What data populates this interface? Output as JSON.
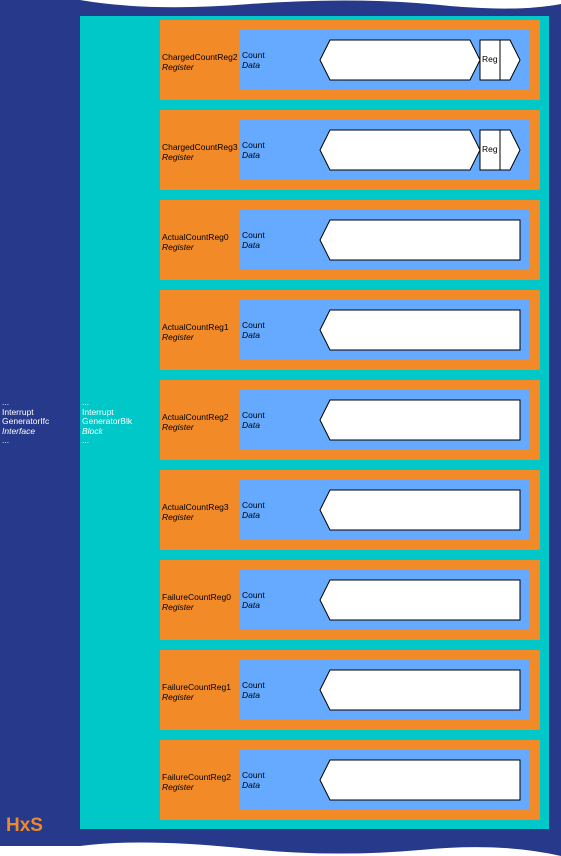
{
  "interface": {
    "dots_top": "...",
    "name": "Interrupt GeneratorIfc",
    "name_line1": "Interrupt",
    "name_line2": "GeneratorIfc",
    "type": "Interface",
    "dots_bottom": "..."
  },
  "block": {
    "dots_top": "...",
    "name_line1": "Interrupt",
    "name_line2": "GeneratorBlk",
    "type": "Block",
    "dots_bottom": "..."
  },
  "logo": "HxS",
  "colors": {
    "interface": "#26398a",
    "block": "#00c8c8",
    "register": "#f28a28",
    "data": "#66aaff",
    "field": "#ffffff"
  },
  "registers": [
    {
      "name": "ChargedCountReg2",
      "type": "Register",
      "field": "Count",
      "field_type": "Data",
      "tag": "Reg"
    },
    {
      "name": "ChargedCountReg3",
      "type": "Register",
      "field": "Count",
      "field_type": "Data",
      "tag": "Reg"
    },
    {
      "name": "ActualCountReg0",
      "type": "Register",
      "field": "Count",
      "field_type": "Data",
      "tag": ""
    },
    {
      "name": "ActualCountReg1",
      "type": "Register",
      "field": "Count",
      "field_type": "Data",
      "tag": ""
    },
    {
      "name": "ActualCountReg2",
      "type": "Register",
      "field": "Count",
      "field_type": "Data",
      "tag": ""
    },
    {
      "name": "ActualCountReg3",
      "type": "Register",
      "field": "Count",
      "field_type": "Data",
      "tag": ""
    },
    {
      "name": "FailureCountReg0",
      "type": "Register",
      "field": "Count",
      "field_type": "Data",
      "tag": ""
    },
    {
      "name": "FailureCountReg1",
      "type": "Register",
      "field": "Count",
      "field_type": "Data",
      "tag": ""
    },
    {
      "name": "FailureCountReg2",
      "type": "Register",
      "field": "Count",
      "field_type": "Data",
      "tag": ""
    }
  ]
}
